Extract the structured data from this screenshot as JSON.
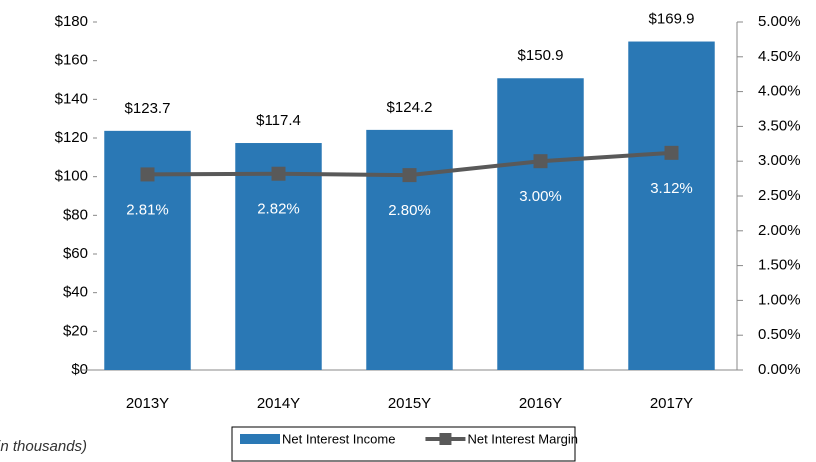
{
  "chart_data": {
    "type": "bar-line",
    "categories": [
      "2013Y",
      "2014Y",
      "2015Y",
      "2016Y",
      "2017Y"
    ],
    "series": [
      {
        "name": "Net Interest Income",
        "type": "bar",
        "color": "#2a78b5",
        "values": [
          123.7,
          117.4,
          124.2,
          150.9,
          169.9
        ],
        "value_labels": [
          "$123.7",
          "$117.4",
          "$124.2",
          "$150.9",
          "$169.9"
        ]
      },
      {
        "name": "Net Interest Margin",
        "type": "line",
        "axis": "y2",
        "color": "#595959",
        "values": [
          2.81,
          2.82,
          2.8,
          3.0,
          3.12
        ],
        "value_labels": [
          "2.81%",
          "2.82%",
          "2.80%",
          "3.00%",
          "3.12%"
        ]
      }
    ],
    "ylim": [
      0,
      180
    ],
    "yticks": [
      {
        "value": 0,
        "label": "$0"
      },
      {
        "value": 20,
        "label": "$20"
      },
      {
        "value": 40,
        "label": "$40"
      },
      {
        "value": 60,
        "label": "$60"
      },
      {
        "value": 80,
        "label": "$80"
      },
      {
        "value": 100,
        "label": "$100"
      },
      {
        "value": 120,
        "label": "$120"
      },
      {
        "value": 140,
        "label": "$140"
      },
      {
        "value": 160,
        "label": "$160"
      },
      {
        "value": 180,
        "label": "$180"
      }
    ],
    "y2lim": [
      0,
      5
    ],
    "y2ticks": [
      {
        "value": 0,
        "label": "0.00%"
      },
      {
        "value": 0.5,
        "label": "0.50%"
      },
      {
        "value": 1,
        "label": "1.00%"
      },
      {
        "value": 1.5,
        "label": "1.50%"
      },
      {
        "value": 2,
        "label": "2.00%"
      },
      {
        "value": 2.5,
        "label": "2.50%"
      },
      {
        "value": 3,
        "label": "3.00%"
      },
      {
        "value": 3.5,
        "label": "3.50%"
      },
      {
        "value": 4,
        "label": "4.00%"
      },
      {
        "value": 4.5,
        "label": "4.50%"
      },
      {
        "value": 5,
        "label": "5.00%"
      }
    ],
    "note": "(in thousands)",
    "legend": "bottom"
  }
}
